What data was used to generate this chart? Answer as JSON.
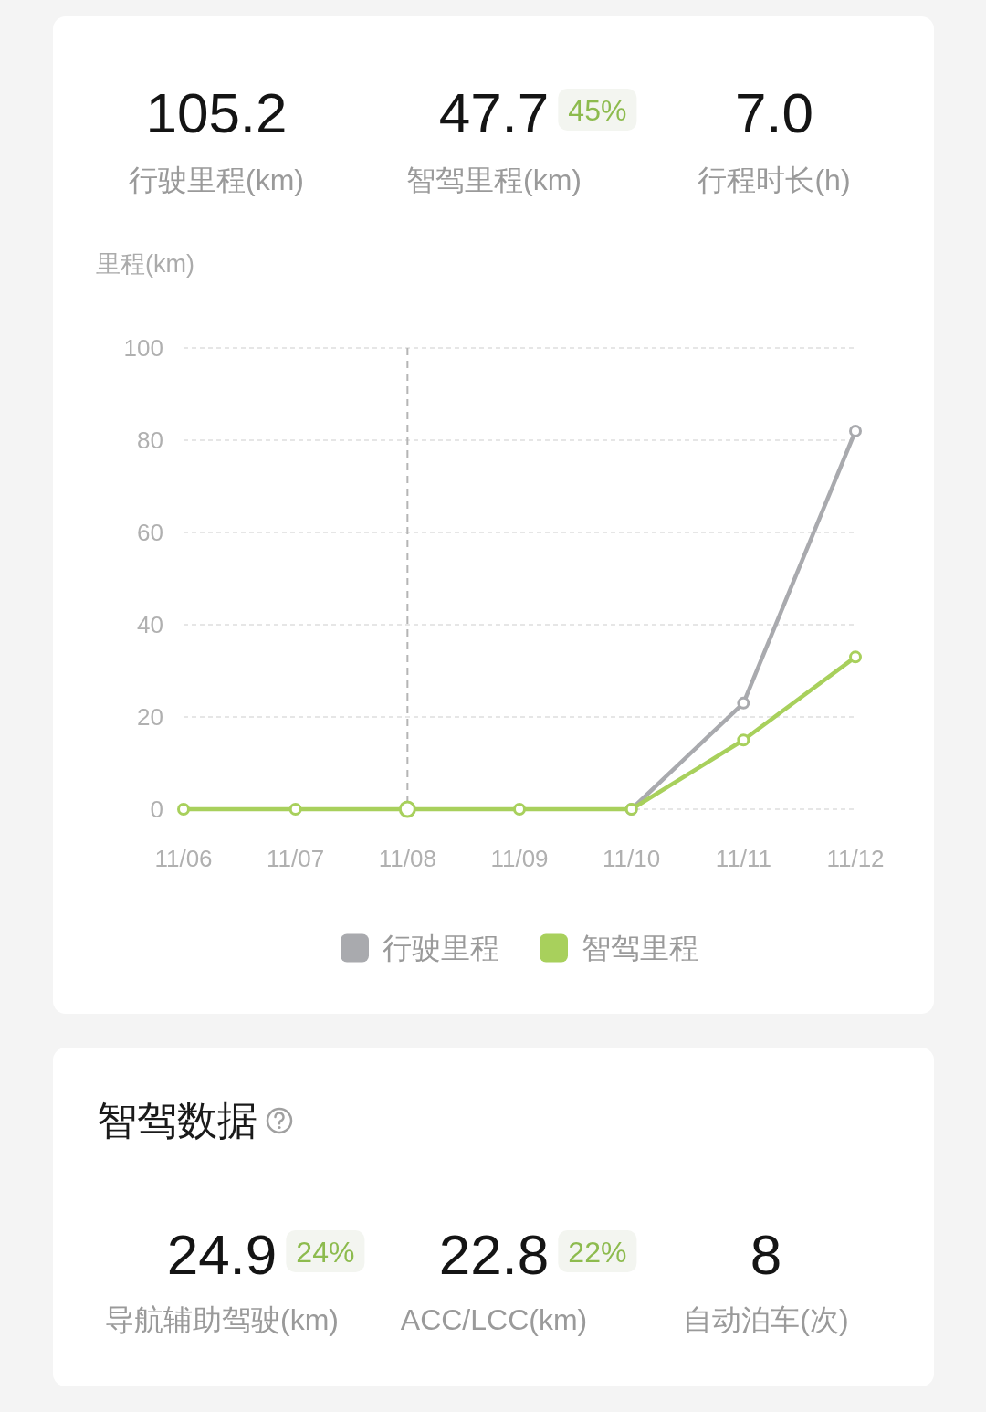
{
  "chart_data": [
    {
      "type": "other",
      "categories": [
        "行驶里程(km)",
        "智驾里程(km)",
        "行程时长(h)"
      ],
      "value_labels": [
        "105.2",
        "47.7",
        "7.0"
      ],
      "annotations": [
        {
          "text": "45%",
          "x": "智驾里程(km)"
        }
      ]
    },
    {
      "type": "line",
      "ylabel": "里程(km)",
      "categories": [
        "11/06",
        "11/07",
        "11/08",
        "11/09",
        "11/10",
        "11/11",
        "11/12"
      ],
      "series": [
        {
          "name": "行驶里程",
          "color": "#a9aaae",
          "values": [
            null,
            null,
            null,
            null,
            0,
            23,
            82
          ]
        },
        {
          "name": "智驾里程",
          "color": "#a8d05c",
          "values": [
            0,
            0,
            0,
            0,
            0,
            15,
            33
          ]
        }
      ],
      "ylim": [
        0,
        100
      ],
      "yticks": [
        0,
        20,
        40,
        60,
        80,
        100
      ],
      "grid": "y",
      "legend": "bottom",
      "marker": "circle",
      "line_style": "solid",
      "ref_lines": [
        {
          "axis": "x",
          "value": "11/08",
          "color": "#b5b5b5",
          "line_style": "dashed"
        }
      ]
    },
    {
      "type": "other",
      "title": "智驾数据",
      "categories": [
        "导航辅助驾驶(km)",
        "ACC/LCC(km)",
        "自动泊车(次)"
      ],
      "value_labels": [
        "24.9",
        "22.8",
        "8"
      ],
      "annotations": [
        {
          "text": "24%",
          "x": "导航辅助驾驶(km)"
        },
        {
          "text": "22%",
          "x": "ACC/LCC(km)"
        }
      ]
    }
  ]
}
